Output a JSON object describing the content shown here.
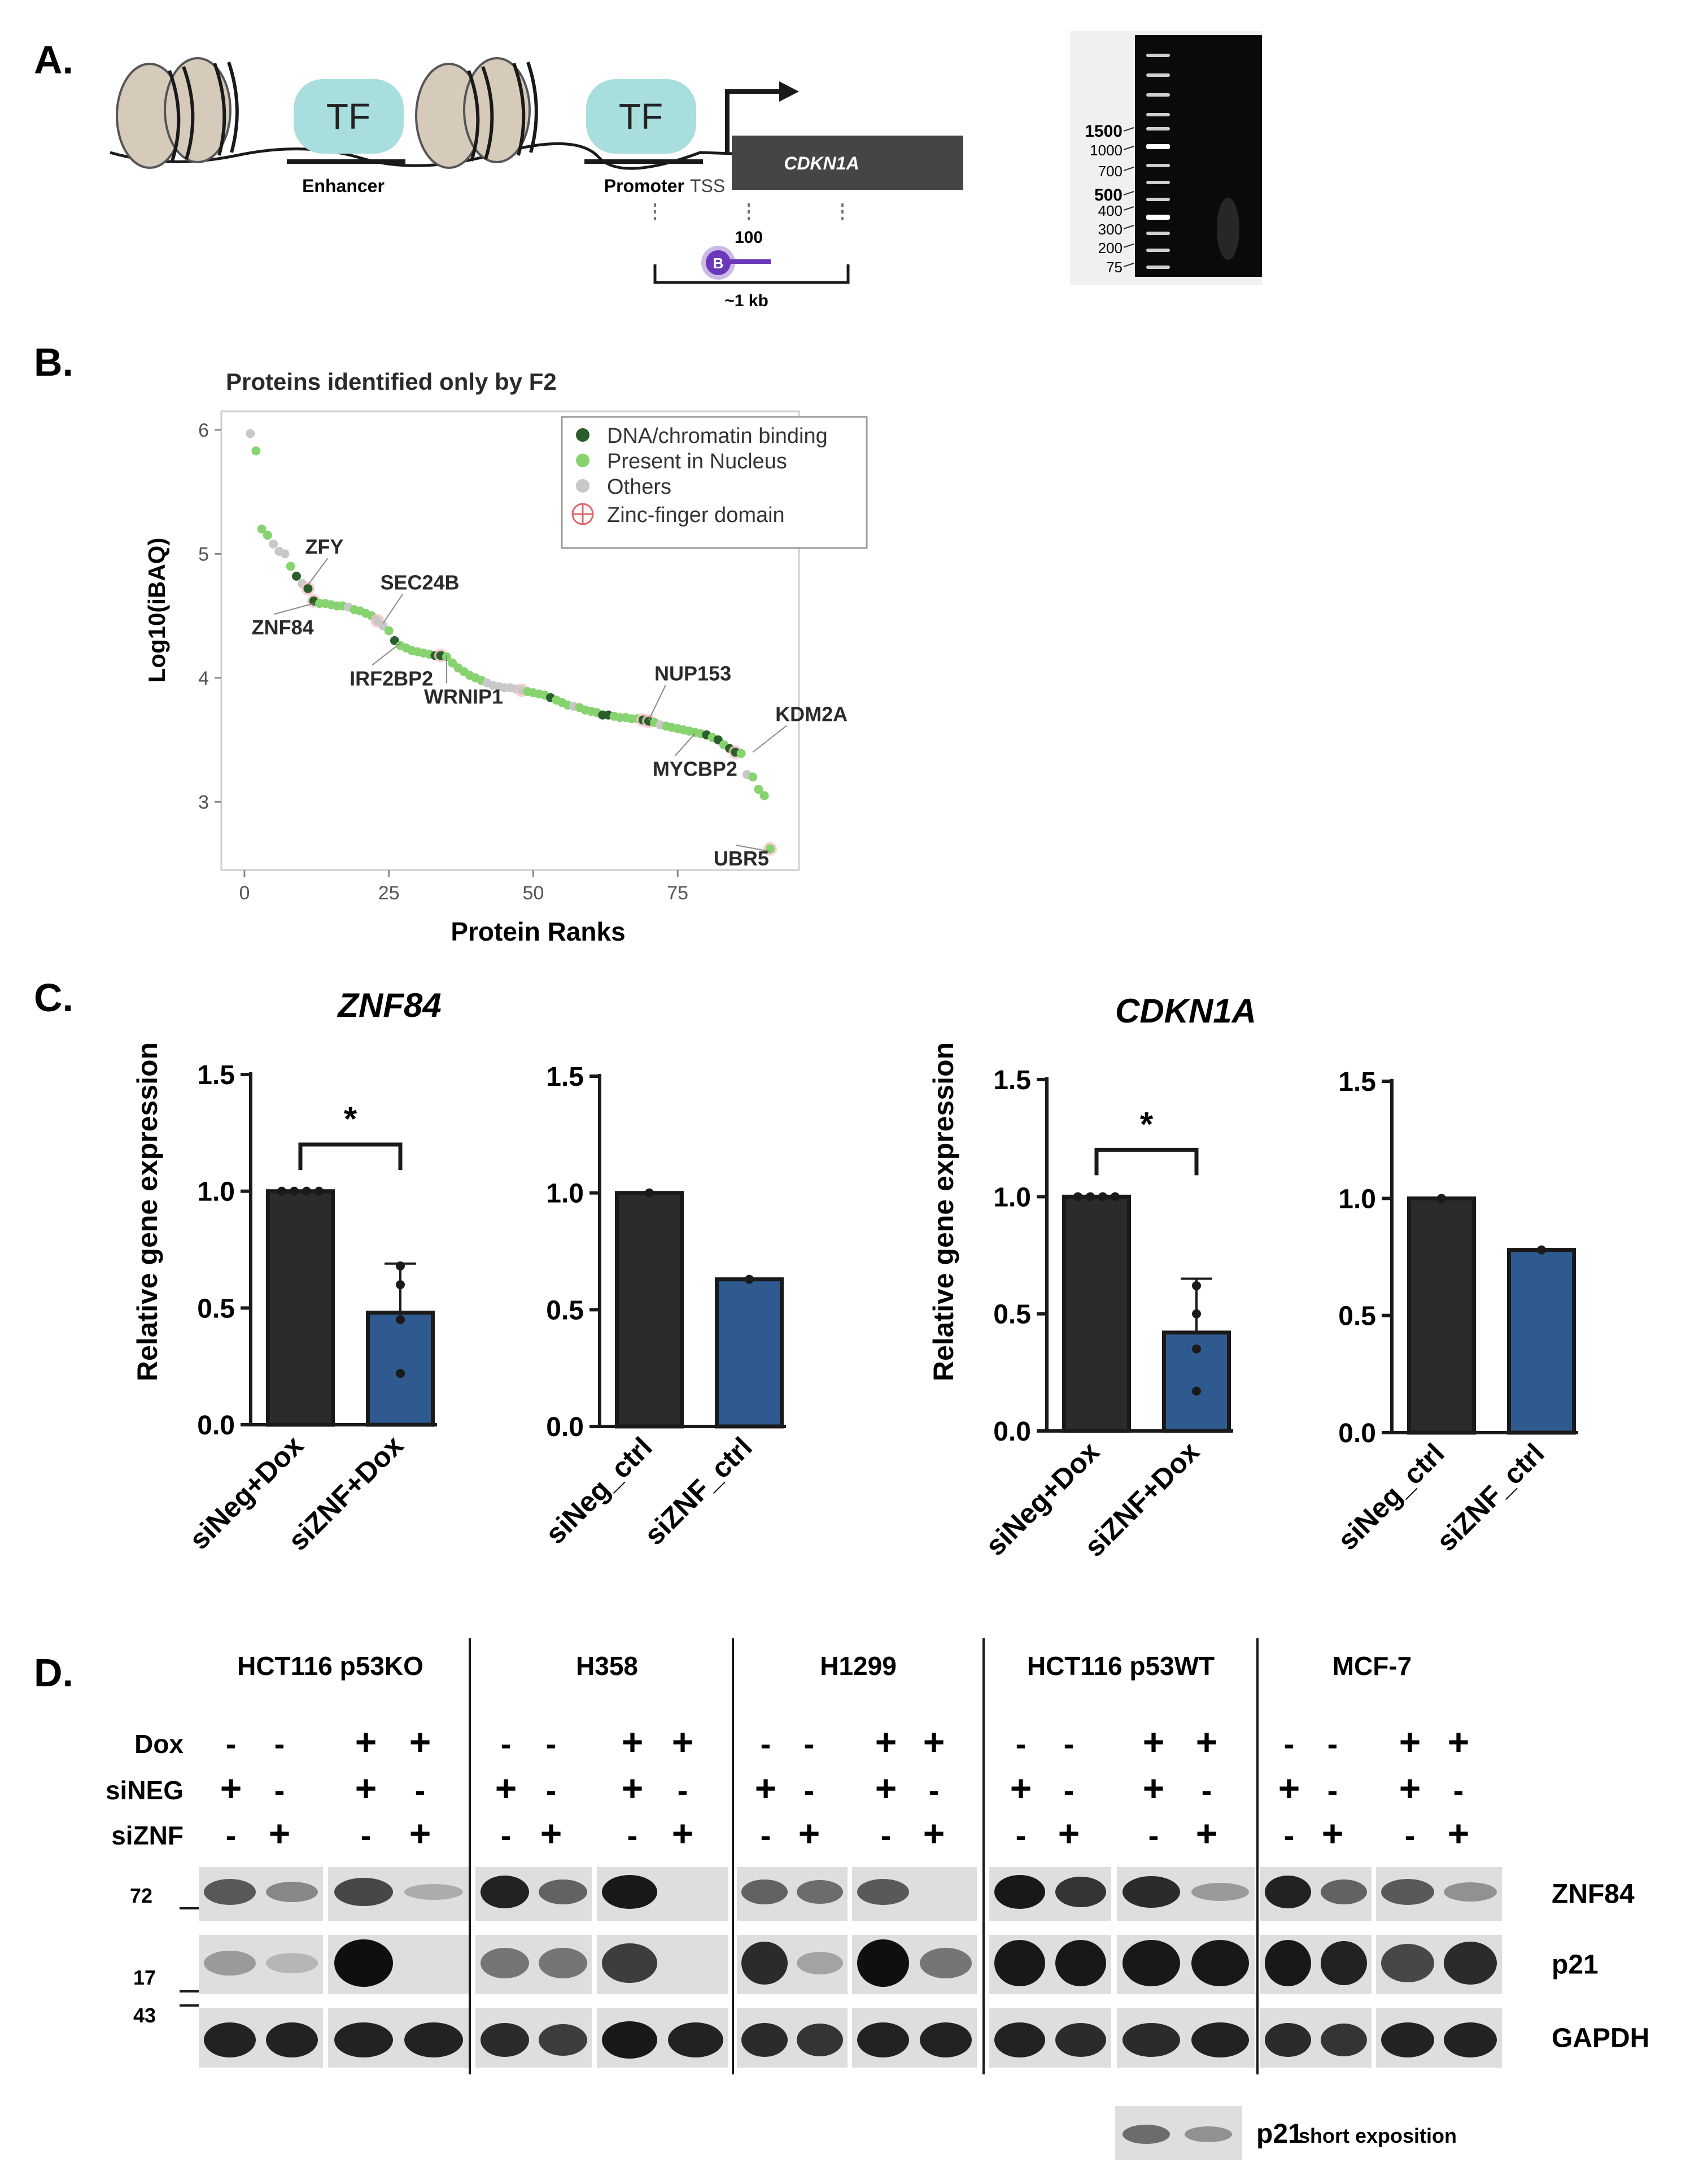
{
  "panels": {
    "a": "A.",
    "b": "B.",
    "c": "C.",
    "d": "D."
  },
  "colors": {
    "dark": "#2b2b2b",
    "blue": "#2f5a8f",
    "tf": "#a8dedd",
    "nucleosome": "#d6cabb",
    "green_dark": "#2a5e2a",
    "green_light": "#86d36f",
    "grey": "#c8c8c8",
    "zinc": "#e0646a",
    "purple": "#6a38b8"
  },
  "panel_a": {
    "tf1": "TF",
    "tf2": "TF",
    "enhancer": "Enhancer",
    "promoter": "Promoter",
    "tss": "TSS",
    "gene": "CDKN1A",
    "probe_label": "B",
    "probe_len": "100",
    "span": "~1 kb",
    "gel_ladder": [
      "1500",
      "1000",
      "700",
      "500",
      "400",
      "300",
      "200",
      "75"
    ]
  },
  "chart_data": [
    {
      "type": "scatter",
      "title": "Proteins identified only by F2",
      "xlabel": "Protein Ranks",
      "ylabel": "Log10(iBAQ)",
      "xlim": [
        -4,
        96
      ],
      "ylim": [
        2.45,
        6.15
      ],
      "xticks": [
        "0",
        "25",
        "50",
        "75"
      ],
      "yticks": [
        "3",
        "4",
        "5",
        "6"
      ],
      "legend": [
        "DNA/chromatin binding",
        "Present in Nucleus",
        "Others",
        "Zinc-finger domain"
      ],
      "labels": [
        {
          "text": "ZFY",
          "x": 11,
          "y": 4.75
        },
        {
          "text": "SEC24B",
          "x": 24,
          "y": 4.44
        },
        {
          "text": "ZNF84",
          "x": 12,
          "y": 4.6
        },
        {
          "text": "IRF2BP2",
          "x": 27,
          "y": 4.28
        },
        {
          "text": "WRNIP1",
          "x": 35,
          "y": 4.18
        },
        {
          "text": "NUP153",
          "x": 70,
          "y": 3.66
        },
        {
          "text": "KDM2A",
          "x": 88,
          "y": 3.4
        },
        {
          "text": "MYCBP2",
          "x": 78,
          "y": 3.55
        },
        {
          "text": "UBR5",
          "x": 91,
          "y": 2.6
        }
      ],
      "points": [
        {
          "x": 1,
          "y": 5.97,
          "c": 2,
          "z": 0
        },
        {
          "x": 2,
          "y": 5.83,
          "c": 1,
          "z": 0
        },
        {
          "x": 3,
          "y": 5.2,
          "c": 1,
          "z": 0
        },
        {
          "x": 4,
          "y": 5.15,
          "c": 1,
          "z": 0
        },
        {
          "x": 5,
          "y": 5.08,
          "c": 2,
          "z": 0
        },
        {
          "x": 6,
          "y": 5.02,
          "c": 2,
          "z": 0
        },
        {
          "x": 7,
          "y": 5.0,
          "c": 2,
          "z": 0
        },
        {
          "x": 8,
          "y": 4.9,
          "c": 1,
          "z": 0
        },
        {
          "x": 9,
          "y": 4.82,
          "c": 0,
          "z": 0
        },
        {
          "x": 10,
          "y": 4.76,
          "c": 2,
          "z": 0
        },
        {
          "x": 11,
          "y": 4.72,
          "c": 0,
          "z": 1
        },
        {
          "x": 12,
          "y": 4.62,
          "c": 0,
          "z": 1
        },
        {
          "x": 13,
          "y": 4.6,
          "c": 1,
          "z": 0
        },
        {
          "x": 14,
          "y": 4.6,
          "c": 1,
          "z": 0
        },
        {
          "x": 15,
          "y": 4.59,
          "c": 1,
          "z": 0
        },
        {
          "x": 16,
          "y": 4.58,
          "c": 1,
          "z": 0
        },
        {
          "x": 17,
          "y": 4.58,
          "c": 1,
          "z": 0
        },
        {
          "x": 18,
          "y": 4.57,
          "c": 2,
          "z": 0
        },
        {
          "x": 19,
          "y": 4.55,
          "c": 1,
          "z": 0
        },
        {
          "x": 20,
          "y": 4.54,
          "c": 1,
          "z": 0
        },
        {
          "x": 21,
          "y": 4.52,
          "c": 1,
          "z": 0
        },
        {
          "x": 22,
          "y": 4.5,
          "c": 1,
          "z": 0
        },
        {
          "x": 23,
          "y": 4.46,
          "c": 2,
          "z": 1
        },
        {
          "x": 24,
          "y": 4.42,
          "c": 2,
          "z": 0
        },
        {
          "x": 25,
          "y": 4.38,
          "c": 1,
          "z": 0
        },
        {
          "x": 26,
          "y": 4.3,
          "c": 0,
          "z": 0
        },
        {
          "x": 27,
          "y": 4.26,
          "c": 1,
          "z": 0
        },
        {
          "x": 28,
          "y": 4.24,
          "c": 1,
          "z": 0
        },
        {
          "x": 29,
          "y": 4.22,
          "c": 1,
          "z": 0
        },
        {
          "x": 30,
          "y": 4.21,
          "c": 1,
          "z": 0
        },
        {
          "x": 31,
          "y": 4.2,
          "c": 1,
          "z": 0
        },
        {
          "x": 32,
          "y": 4.19,
          "c": 1,
          "z": 0
        },
        {
          "x": 33,
          "y": 4.18,
          "c": 0,
          "z": 0
        },
        {
          "x": 34,
          "y": 4.18,
          "c": 0,
          "z": 1
        },
        {
          "x": 35,
          "y": 4.17,
          "c": 1,
          "z": 0
        },
        {
          "x": 36,
          "y": 4.12,
          "c": 1,
          "z": 0
        },
        {
          "x": 37,
          "y": 4.08,
          "c": 1,
          "z": 0
        },
        {
          "x": 38,
          "y": 4.05,
          "c": 1,
          "z": 0
        },
        {
          "x": 39,
          "y": 4.02,
          "c": 1,
          "z": 0
        },
        {
          "x": 40,
          "y": 4.0,
          "c": 1,
          "z": 0
        },
        {
          "x": 41,
          "y": 3.98,
          "c": 1,
          "z": 0
        },
        {
          "x": 42,
          "y": 3.96,
          "c": 2,
          "z": 0
        },
        {
          "x": 43,
          "y": 3.94,
          "c": 2,
          "z": 0
        },
        {
          "x": 44,
          "y": 3.93,
          "c": 2,
          "z": 0
        },
        {
          "x": 45,
          "y": 3.92,
          "c": 2,
          "z": 0
        },
        {
          "x": 46,
          "y": 3.92,
          "c": 2,
          "z": 0
        },
        {
          "x": 47,
          "y": 3.91,
          "c": 2,
          "z": 0
        },
        {
          "x": 48,
          "y": 3.9,
          "c": 2,
          "z": 1
        },
        {
          "x": 49,
          "y": 3.89,
          "c": 1,
          "z": 0
        },
        {
          "x": 50,
          "y": 3.88,
          "c": 1,
          "z": 0
        },
        {
          "x": 51,
          "y": 3.87,
          "c": 1,
          "z": 0
        },
        {
          "x": 52,
          "y": 3.86,
          "c": 1,
          "z": 0
        },
        {
          "x": 53,
          "y": 3.84,
          "c": 0,
          "z": 0
        },
        {
          "x": 54,
          "y": 3.82,
          "c": 1,
          "z": 0
        },
        {
          "x": 55,
          "y": 3.8,
          "c": 1,
          "z": 0
        },
        {
          "x": 56,
          "y": 3.78,
          "c": 1,
          "z": 0
        },
        {
          "x": 57,
          "y": 3.77,
          "c": 2,
          "z": 0
        },
        {
          "x": 58,
          "y": 3.76,
          "c": 1,
          "z": 0
        },
        {
          "x": 59,
          "y": 3.74,
          "c": 1,
          "z": 0
        },
        {
          "x": 60,
          "y": 3.73,
          "c": 1,
          "z": 0
        },
        {
          "x": 61,
          "y": 3.72,
          "c": 1,
          "z": 0
        },
        {
          "x": 62,
          "y": 3.7,
          "c": 0,
          "z": 0
        },
        {
          "x": 63,
          "y": 3.7,
          "c": 0,
          "z": 0
        },
        {
          "x": 64,
          "y": 3.69,
          "c": 1,
          "z": 0
        },
        {
          "x": 65,
          "y": 3.68,
          "c": 1,
          "z": 0
        },
        {
          "x": 66,
          "y": 3.68,
          "c": 1,
          "z": 0
        },
        {
          "x": 67,
          "y": 3.67,
          "c": 1,
          "z": 0
        },
        {
          "x": 68,
          "y": 3.67,
          "c": 1,
          "z": 0
        },
        {
          "x": 69,
          "y": 3.66,
          "c": 0,
          "z": 1
        },
        {
          "x": 70,
          "y": 3.65,
          "c": 0,
          "z": 1
        },
        {
          "x": 71,
          "y": 3.64,
          "c": 1,
          "z": 0
        },
        {
          "x": 72,
          "y": 3.62,
          "c": 2,
          "z": 0
        },
        {
          "x": 73,
          "y": 3.61,
          "c": 1,
          "z": 0
        },
        {
          "x": 74,
          "y": 3.6,
          "c": 1,
          "z": 0
        },
        {
          "x": 75,
          "y": 3.59,
          "c": 1,
          "z": 0
        },
        {
          "x": 76,
          "y": 3.58,
          "c": 1,
          "z": 0
        },
        {
          "x": 77,
          "y": 3.57,
          "c": 1,
          "z": 0
        },
        {
          "x": 78,
          "y": 3.56,
          "c": 1,
          "z": 0
        },
        {
          "x": 79,
          "y": 3.55,
          "c": 1,
          "z": 0
        },
        {
          "x": 80,
          "y": 3.54,
          "c": 0,
          "z": 0
        },
        {
          "x": 81,
          "y": 3.52,
          "c": 1,
          "z": 0
        },
        {
          "x": 82,
          "y": 3.5,
          "c": 0,
          "z": 0
        },
        {
          "x": 83,
          "y": 3.46,
          "c": 1,
          "z": 0
        },
        {
          "x": 84,
          "y": 3.43,
          "c": 0,
          "z": 0
        },
        {
          "x": 85,
          "y": 3.4,
          "c": 0,
          "z": 1
        },
        {
          "x": 86,
          "y": 3.39,
          "c": 1,
          "z": 0
        },
        {
          "x": 87,
          "y": 3.22,
          "c": 2,
          "z": 0
        },
        {
          "x": 88,
          "y": 3.2,
          "c": 1,
          "z": 0
        },
        {
          "x": 89,
          "y": 3.1,
          "c": 1,
          "z": 0
        },
        {
          "x": 90,
          "y": 3.05,
          "c": 1,
          "z": 0
        },
        {
          "x": 91,
          "y": 2.62,
          "c": 1,
          "z": 1
        }
      ]
    },
    {
      "type": "bar",
      "gene": "ZNF84",
      "ylabel": "Relative gene expression",
      "ylim": [
        0,
        1.5
      ],
      "yticks": [
        "0.0",
        "0.5",
        "1.0",
        "1.5"
      ],
      "categories": [
        "siNeg+Dox",
        "siZNF+Dox"
      ],
      "values": [
        1.0,
        0.48
      ],
      "error": [
        0,
        0.21
      ],
      "dots": [
        [
          1.0,
          1.0,
          1.0,
          1.0
        ],
        [
          0.68,
          0.6,
          0.45,
          0.22
        ]
      ],
      "significance": "*"
    },
    {
      "type": "bar",
      "ylim": [
        0,
        1.5
      ],
      "yticks": [
        "0.0",
        "0.5",
        "1.0",
        "1.5"
      ],
      "categories": [
        "siNeg_ctrl",
        "siZNF_ctrl"
      ],
      "values": [
        1.0,
        0.63
      ],
      "dots": [
        [
          1.0
        ],
        [
          0.63
        ]
      ]
    },
    {
      "type": "bar",
      "gene": "CDKN1A",
      "ylabel": "Relative gene expression",
      "ylim": [
        0,
        1.5
      ],
      "yticks": [
        "0.0",
        "0.5",
        "1.0",
        "1.5"
      ],
      "categories": [
        "siNeg+Dox",
        "siZNF+Dox"
      ],
      "values": [
        1.0,
        0.42
      ],
      "error": [
        0,
        0.23
      ],
      "dots": [
        [
          1.0,
          1.0,
          1.0,
          1.0
        ],
        [
          0.62,
          0.5,
          0.35,
          0.17
        ]
      ],
      "significance": "*"
    },
    {
      "type": "bar",
      "ylim": [
        0,
        1.5
      ],
      "yticks": [
        "0.0",
        "0.5",
        "1.0",
        "1.5"
      ],
      "categories": [
        "siNeg_ctrl",
        "siZNF_ctrl"
      ],
      "values": [
        1.0,
        0.78
      ],
      "dots": [
        [
          1.0
        ],
        [
          0.78
        ]
      ]
    }
  ],
  "panel_d": {
    "cell_lines": [
      "HCT116 p53KO",
      "H358",
      "H1299",
      "HCT116 p53WT",
      "MCF-7"
    ],
    "row_labels": [
      "Dox",
      "siNEG",
      "siZNF"
    ],
    "treatments": [
      [
        "-",
        "-",
        "+",
        "+"
      ],
      [
        "+",
        "-",
        "+",
        "-"
      ],
      [
        "-",
        "+",
        "-",
        "+"
      ]
    ],
    "markers": [
      "72",
      "17",
      "43"
    ],
    "blots": [
      "ZNF84",
      "p21",
      "GAPDH"
    ],
    "short_exposure": "p21",
    "short_exposure_note": "short exposition",
    "intensity": {
      "ZNF84": [
        [
          0.6,
          0.35,
          0.7,
          0.15
        ],
        [
          0.9,
          0.55,
          0.95,
          0.0
        ],
        [
          0.55,
          0.5,
          0.6,
          0.0
        ],
        [
          0.95,
          0.8,
          0.85,
          0.25
        ],
        [
          0.9,
          0.55,
          0.6,
          0.3
        ]
      ],
      "p21": [
        [
          0.25,
          0.1,
          1.0,
          0.0
        ],
        [
          0.45,
          0.45,
          0.75,
          0.0
        ],
        [
          0.85,
          0.2,
          1.0,
          0.45
        ],
        [
          0.95,
          0.95,
          0.95,
          0.95
        ],
        [
          0.95,
          0.9,
          0.7,
          0.85
        ]
      ],
      "GAPDH": [
        [
          0.9,
          0.9,
          0.9,
          0.9
        ],
        [
          0.85,
          0.75,
          0.95,
          0.9
        ],
        [
          0.85,
          0.8,
          0.9,
          0.9
        ],
        [
          0.9,
          0.85,
          0.85,
          0.9
        ],
        [
          0.85,
          0.8,
          0.9,
          0.9
        ]
      ],
      "p21_short": [
        0.5,
        0.3
      ]
    }
  }
}
